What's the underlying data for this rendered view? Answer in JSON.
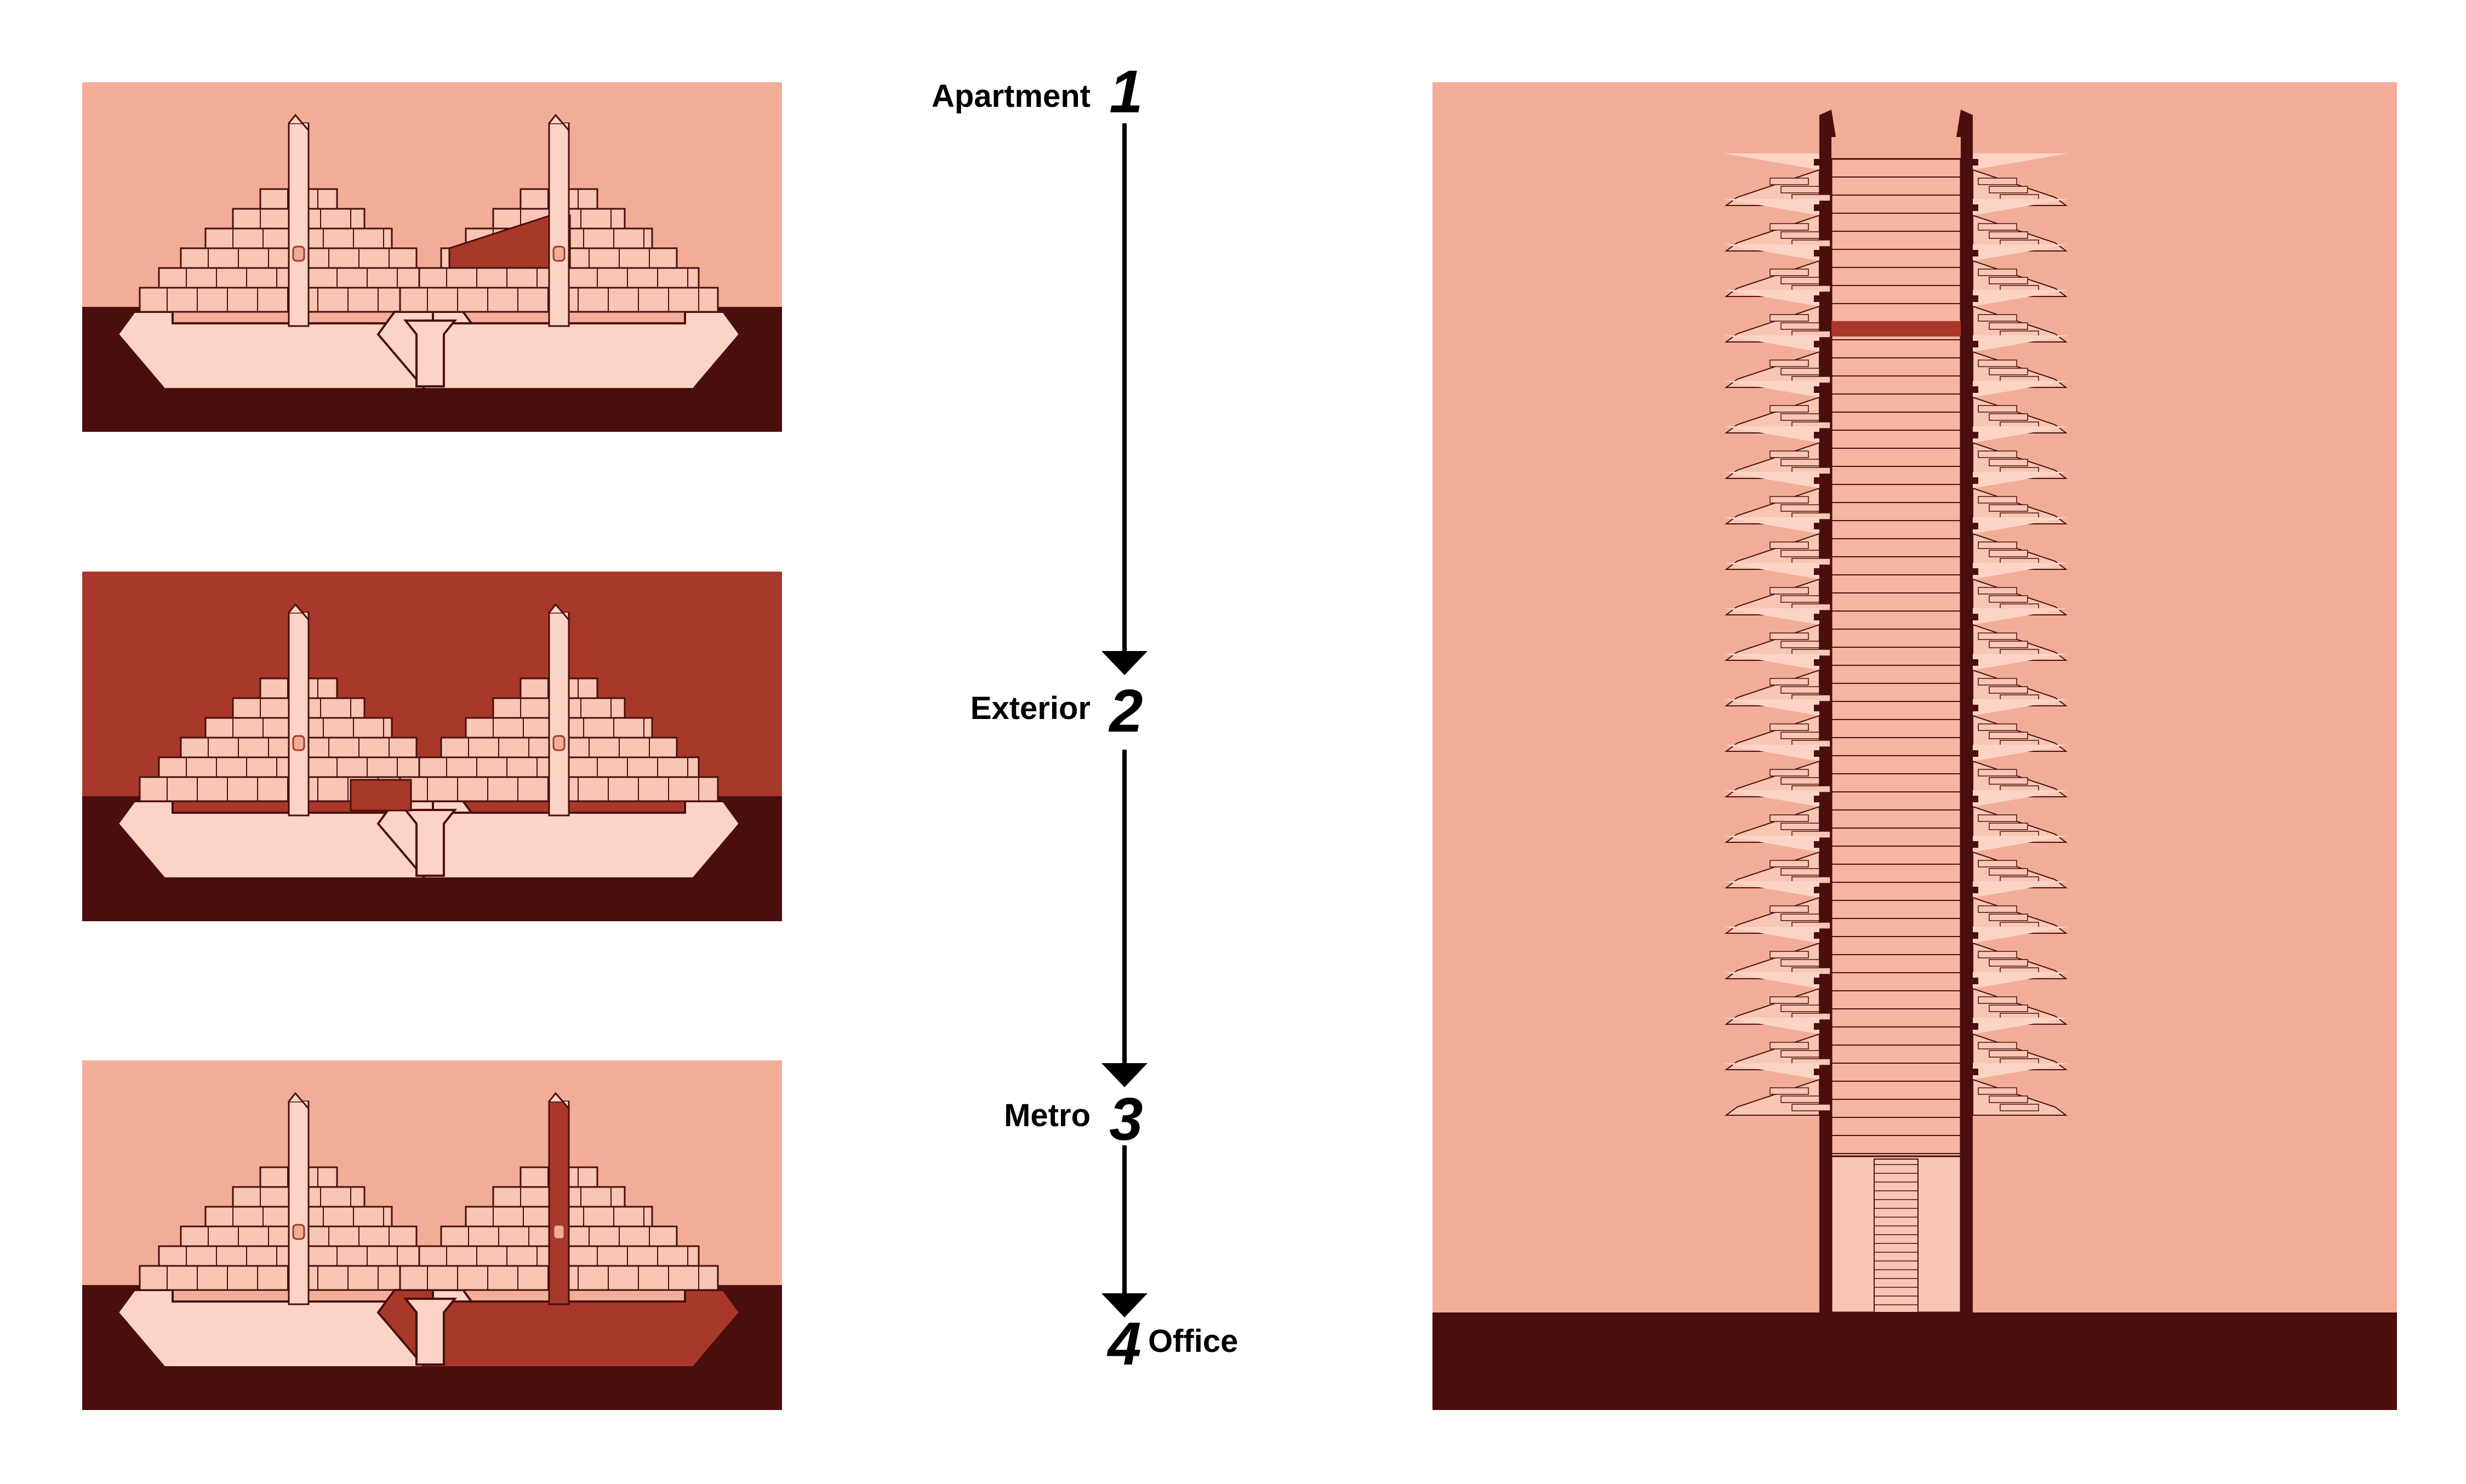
{
  "colors": {
    "sky": "#f2ad98",
    "ground": "#4a0e0d",
    "building_light": "#fcd4c5",
    "building_mid": "#f7c6b4",
    "outline": "#4a0e0d",
    "highlight": "#a8382a",
    "arrow": "#000000"
  },
  "steps": [
    {
      "number": "1",
      "label": "Apartment"
    },
    {
      "number": "2",
      "label": "Exterior"
    },
    {
      "number": "3",
      "label": "Metro"
    },
    {
      "number": "4",
      "label": "Office"
    }
  ],
  "panels": [
    {
      "highlight": "apartment"
    },
    {
      "highlight": "exterior"
    },
    {
      "highlight": "metro-office"
    }
  ]
}
